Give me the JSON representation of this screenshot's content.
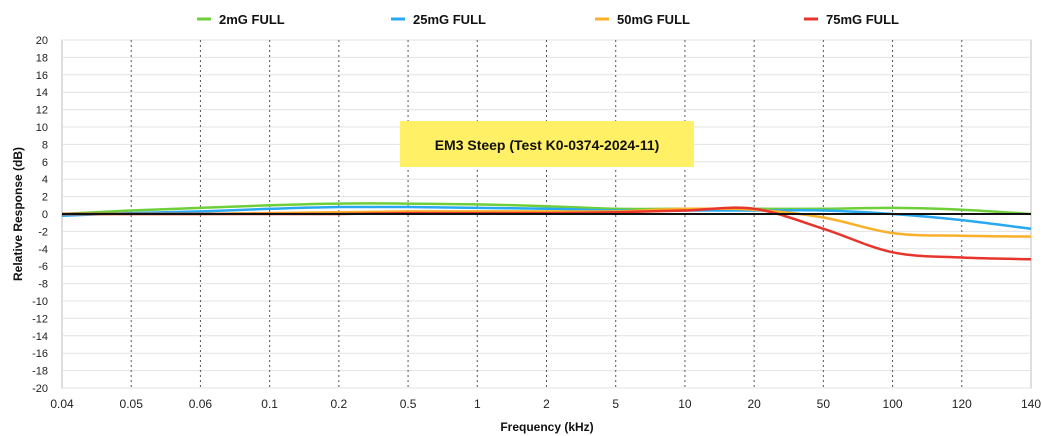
{
  "chart_data": {
    "type": "line",
    "xlabel": "Frequency (kHz)",
    "ylabel": "Relative Response (dB)",
    "ylim": [
      -20,
      20
    ],
    "yticks": [
      20,
      18,
      16,
      14,
      12,
      10,
      8,
      6,
      4,
      2,
      0,
      -2,
      -4,
      -6,
      -8,
      -10,
      -12,
      -14,
      -16,
      -18,
      -20
    ],
    "x": [
      "0.04",
      "0.05",
      "0.06",
      "0.1",
      "0.2",
      "0.5",
      "1",
      "2",
      "5",
      "10",
      "20",
      "50",
      "100",
      "120",
      "140"
    ],
    "grid": {
      "vertical": "dotted",
      "horizontal": "solid"
    },
    "legend_position": "top",
    "annotation": {
      "text": "EM3 Steep (Test K0-0374-2024-11)",
      "background": "#fff066"
    },
    "series": [
      {
        "name": "2mG FULL",
        "color": "#6ecf3a",
        "values": [
          0.0,
          0.4,
          0.7,
          1.0,
          1.2,
          1.2,
          1.1,
          0.9,
          0.6,
          0.6,
          0.6,
          0.6,
          0.7,
          0.5,
          0.0
        ]
      },
      {
        "name": "25mG FULL",
        "color": "#29a9f2",
        "values": [
          -0.2,
          0.1,
          0.3,
          0.6,
          0.8,
          0.8,
          0.7,
          0.6,
          0.4,
          0.4,
          0.4,
          0.4,
          0.0,
          -0.7,
          -1.7
        ]
      },
      {
        "name": "50mG FULL",
        "color": "#fbb02b",
        "values": [
          0.0,
          0.0,
          0.0,
          0.1,
          0.2,
          0.3,
          0.3,
          0.3,
          0.3,
          0.6,
          0.5,
          -0.4,
          -2.2,
          -2.5,
          -2.6
        ]
      },
      {
        "name": "75mG FULL",
        "color": "#e8352c",
        "values": [
          0.0,
          0.0,
          0.0,
          0.0,
          0.0,
          0.1,
          0.1,
          0.1,
          0.2,
          0.4,
          0.6,
          -1.7,
          -4.4,
          -5.0,
          -5.2
        ]
      }
    ]
  }
}
